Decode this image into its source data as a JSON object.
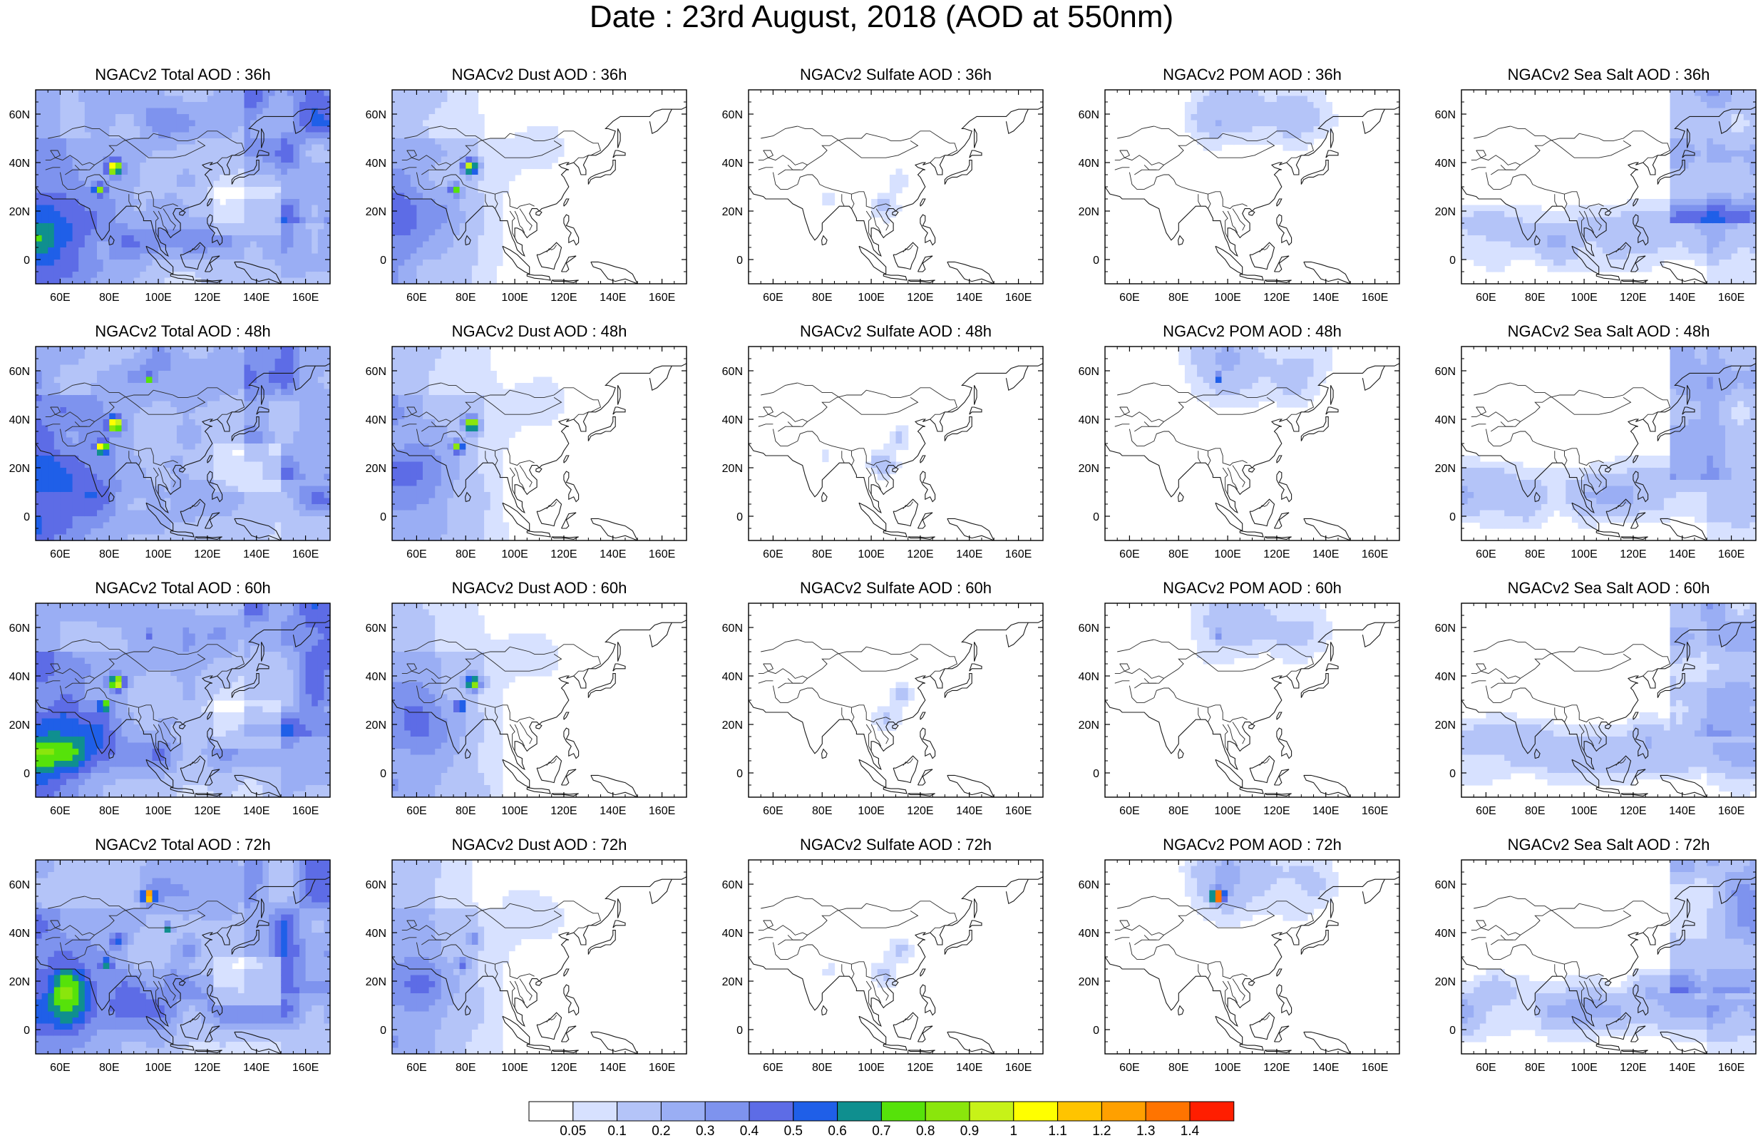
{
  "title": "Date : 23rd August, 2018 (AOD at 550nm)",
  "panels": [
    [
      "NGACv2 Total AOD : 36h",
      "NGACv2 Dust AOD : 36h",
      "NGACv2 Sulfate AOD : 36h",
      "NGACv2 POM AOD : 36h",
      "NGACv2 Sea Salt AOD : 36h"
    ],
    [
      "NGACv2 Total AOD : 48h",
      "NGACv2 Dust AOD : 48h",
      "NGACv2 Sulfate AOD : 48h",
      "NGACv2 POM AOD : 48h",
      "NGACv2 Sea Salt AOD : 48h"
    ],
    [
      "NGACv2 Total AOD : 60h",
      "NGACv2 Dust AOD : 60h",
      "NGACv2 Sulfate AOD : 60h",
      "NGACv2 POM AOD : 60h",
      "NGACv2 Sea Salt AOD : 60h"
    ],
    [
      "NGACv2 Total AOD : 72h",
      "NGACv2 Dust AOD : 72h",
      "NGACv2 Sulfate AOD : 72h",
      "NGACv2 POM AOD : 72h",
      "NGACv2 Sea Salt  AOD : 72h"
    ]
  ],
  "axes": {
    "lon_ticks": [
      "60E",
      "80E",
      "100E",
      "120E",
      "140E",
      "160E"
    ],
    "lon_values": [
      60,
      80,
      100,
      120,
      140,
      160
    ],
    "lon_range": [
      50,
      170
    ],
    "lat_ticks": [
      "60N",
      "40N",
      "20N",
      "0"
    ],
    "lat_values": [
      60,
      40,
      20,
      0
    ],
    "lat_range": [
      -10,
      70
    ]
  },
  "colorbar": {
    "labels": [
      "0.05",
      "0.1",
      "0.2",
      "0.3",
      "0.4",
      "0.5",
      "0.6",
      "0.7",
      "0.8",
      "0.9",
      "1",
      "1.1",
      "1.2",
      "1.3",
      "1.4"
    ],
    "colors": [
      "#ffffff",
      "#d7e1ff",
      "#b4c4f8",
      "#9aaef4",
      "#7e93ee",
      "#5d6ce6",
      "#1f5fe8",
      "#0f8f8f",
      "#56e20a",
      "#8ae60c",
      "#c7f218",
      "#ffff00",
      "#ffc400",
      "#ffa000",
      "#ff7400",
      "#ff1e00"
    ]
  }
}
